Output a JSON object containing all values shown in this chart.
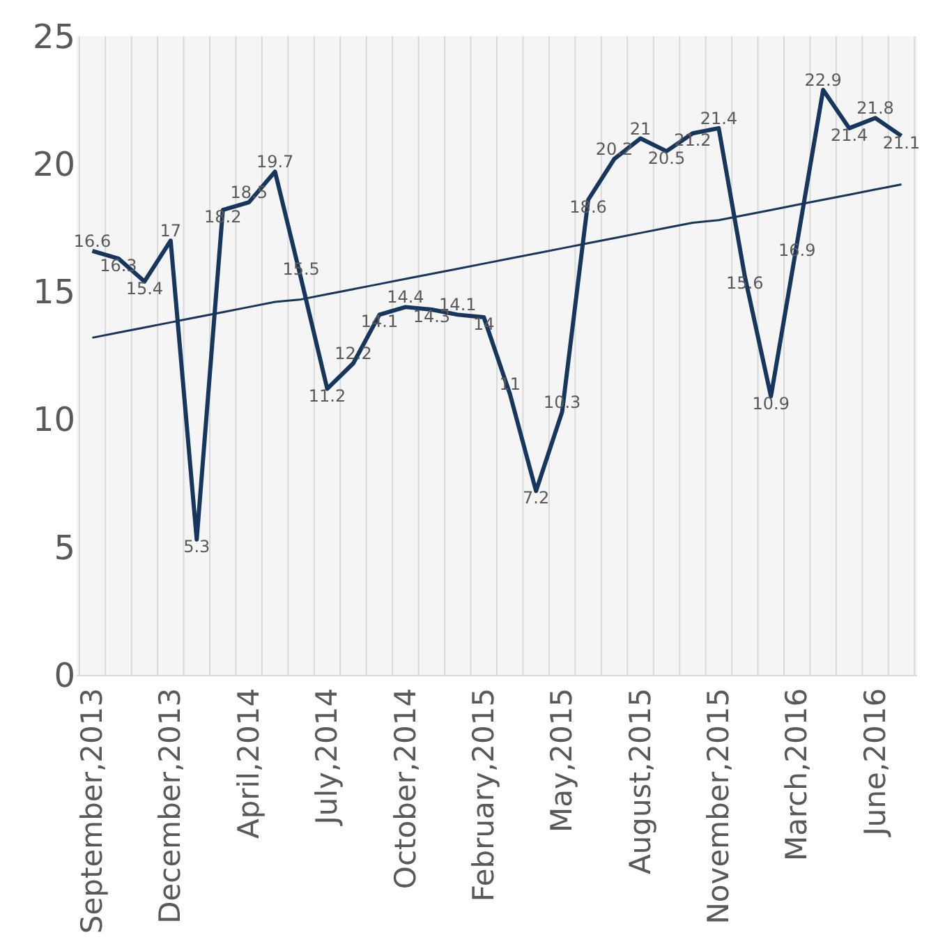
{
  "chart_data": {
    "type": "line",
    "categories": [
      "September,2013",
      null,
      null,
      "December,2013",
      null,
      null,
      "April,2014",
      null,
      null,
      "July,2014",
      null,
      null,
      "October,2014",
      null,
      null,
      "February,2015",
      null,
      null,
      "May,2015",
      null,
      null,
      "August,2015",
      null,
      null,
      "November,2015",
      null,
      null,
      "March,2016",
      null,
      null,
      "June,2016",
      null
    ],
    "series": [
      {
        "color": "#17365d",
        "values": [
          16.6,
          16.3,
          15.4,
          17,
          5.3,
          18.2,
          18.5,
          19.7,
          15.5,
          11.2,
          12.2,
          14.1,
          14.4,
          14.3,
          14.1,
          14,
          11,
          7.2,
          10.3,
          18.6,
          20.2,
          21,
          20.5,
          21.2,
          21.4,
          15.6,
          10.9,
          16.9,
          22.9,
          21.4,
          21.8,
          21.1
        ],
        "value_labels": [
          "16.6",
          "16.3",
          "15.4",
          "17",
          "5.3",
          "18.2",
          "18.5",
          "19.7",
          "15.5",
          "11.2",
          "12.2",
          "14.1",
          "14.4",
          "14.3",
          "14.1",
          "14",
          "11",
          "7.2",
          "10.3",
          "18.6",
          "20.2",
          "21",
          "20.5",
          "21.2",
          "21.4",
          "15.6",
          "10.9",
          "16.9",
          "22.9",
          "21.4",
          "21.8",
          "21.1"
        ]
      },
      {
        "type": "line",
        "color": "#17365d",
        "values": [
          13.2,
          13.4,
          13.6,
          13.8,
          14.0,
          14.2,
          14.4,
          14.6,
          14.7,
          14.9,
          15.1,
          15.3,
          15.5,
          15.7,
          15.9,
          16.1,
          16.3,
          16.5,
          16.7,
          16.9,
          17.1,
          17.3,
          17.5,
          17.7,
          17.8,
          18.0,
          18.2,
          18.4,
          18.6,
          18.8,
          19.0,
          19.2
        ]
      }
    ],
    "ylim": [
      0,
      25
    ],
    "yticks": [
      0,
      5,
      10,
      15,
      20,
      25
    ],
    "grid": "x"
  }
}
